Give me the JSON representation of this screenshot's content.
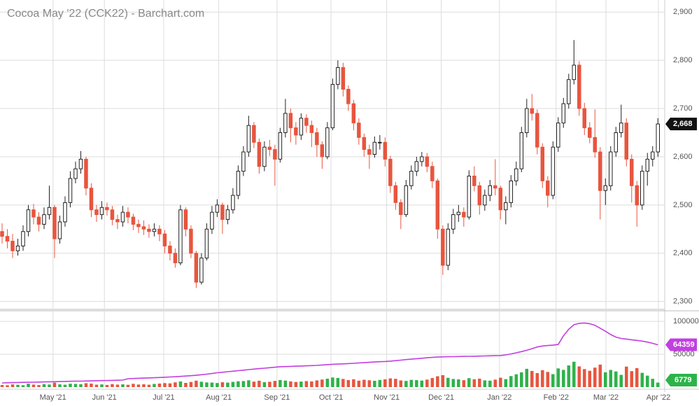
{
  "chart_data": [
    {
      "type": "candlestick",
      "title": "Cocoa May '22 (CCK22) - Barchart.com",
      "open": [
        2445,
        2435,
        2425,
        2405,
        2415,
        2445,
        2490,
        2475,
        2460,
        2480,
        2495,
        2430,
        2465,
        2505,
        2555,
        2575,
        2595,
        2535,
        2490,
        2480,
        2495,
        2490,
        2470,
        2465,
        2485,
        2475,
        2460,
        2455,
        2450,
        2445,
        2450,
        2440,
        2415,
        2400,
        2380,
        2490,
        2450,
        2400,
        2340,
        2390,
        2450,
        2485,
        2500,
        2470,
        2490,
        2520,
        2570,
        2610,
        2665,
        2630,
        2580,
        2620,
        2615,
        2595,
        2650,
        2690,
        2660,
        2645,
        2680,
        2665,
        2650,
        2625,
        2600,
        2660,
        2750,
        2785,
        2740,
        2710,
        2670,
        2640,
        2615,
        2605,
        2630,
        2630,
        2595,
        2540,
        2505,
        2480,
        2540,
        2570,
        2590,
        2600,
        2580,
        2550,
        2450,
        2375,
        2450,
        2480,
        2485,
        2475,
        2560,
        2540,
        2500,
        2520,
        2540,
        2535,
        2490,
        2505,
        2550,
        2575,
        2650,
        2700,
        2690,
        2620,
        2550,
        2520,
        2620,
        2670,
        2710,
        2760,
        2790,
        2700,
        2660,
        2640,
        2610,
        2530,
        2540,
        2610,
        2650,
        2670,
        2595,
        2540,
        2500,
        2570,
        2595,
        2610
      ],
      "high": [
        2462,
        2450,
        2440,
        2430,
        2458,
        2500,
        2502,
        2485,
        2495,
        2540,
        2500,
        2478,
        2518,
        2570,
        2590,
        2612,
        2600,
        2545,
        2500,
        2508,
        2505,
        2498,
        2480,
        2498,
        2495,
        2482,
        2470,
        2468,
        2460,
        2462,
        2458,
        2448,
        2425,
        2410,
        2500,
        2495,
        2458,
        2405,
        2400,
        2462,
        2498,
        2512,
        2505,
        2500,
        2535,
        2582,
        2622,
        2685,
        2672,
        2638,
        2632,
        2635,
        2625,
        2660,
        2720,
        2700,
        2672,
        2690,
        2688,
        2675,
        2660,
        2632,
        2672,
        2762,
        2800,
        2795,
        2748,
        2718,
        2680,
        2648,
        2625,
        2642,
        2645,
        2640,
        2602,
        2548,
        2512,
        2552,
        2582,
        2600,
        2610,
        2608,
        2590,
        2555,
        2458,
        2462,
        2492,
        2500,
        2495,
        2572,
        2580,
        2548,
        2532,
        2552,
        2595,
        2540,
        2518,
        2562,
        2590,
        2662,
        2720,
        2730,
        2698,
        2628,
        2560,
        2632,
        2682,
        2722,
        2772,
        2842,
        2798,
        2712,
        2672,
        2698,
        2620,
        2555,
        2622,
        2662,
        2708,
        2680,
        2605,
        2550,
        2582,
        2608,
        2622,
        2680
      ],
      "low": [
        2420,
        2410,
        2390,
        2395,
        2405,
        2435,
        2460,
        2445,
        2450,
        2470,
        2390,
        2420,
        2455,
        2495,
        2545,
        2565,
        2520,
        2475,
        2465,
        2470,
        2478,
        2458,
        2450,
        2455,
        2462,
        2448,
        2442,
        2438,
        2432,
        2435,
        2425,
        2400,
        2385,
        2370,
        2375,
        2435,
        2390,
        2328,
        2335,
        2385,
        2440,
        2475,
        2440,
        2460,
        2482,
        2512,
        2560,
        2600,
        2618,
        2565,
        2570,
        2602,
        2540,
        2588,
        2640,
        2630,
        2625,
        2635,
        2650,
        2620,
        2600,
        2575,
        2595,
        2655,
        2740,
        2725,
        2695,
        2655,
        2625,
        2600,
        2575,
        2598,
        2615,
        2580,
        2525,
        2490,
        2450,
        2475,
        2532,
        2560,
        2580,
        2568,
        2535,
        2430,
        2355,
        2365,
        2440,
        2465,
        2455,
        2470,
        2528,
        2480,
        2488,
        2508,
        2520,
        2470,
        2460,
        2495,
        2540,
        2568,
        2640,
        2675,
        2605,
        2535,
        2495,
        2512,
        2610,
        2660,
        2700,
        2750,
        2685,
        2645,
        2628,
        2598,
        2470,
        2500,
        2530,
        2600,
        2640,
        2580,
        2505,
        2455,
        2490,
        2540,
        2580,
        2600
      ],
      "close": [
        2435,
        2425,
        2405,
        2415,
        2445,
        2490,
        2475,
        2460,
        2480,
        2495,
        2430,
        2465,
        2505,
        2555,
        2575,
        2595,
        2535,
        2490,
        2480,
        2495,
        2490,
        2470,
        2465,
        2485,
        2475,
        2460,
        2455,
        2450,
        2445,
        2450,
        2440,
        2415,
        2400,
        2380,
        2490,
        2450,
        2400,
        2340,
        2390,
        2450,
        2485,
        2500,
        2470,
        2490,
        2520,
        2570,
        2610,
        2665,
        2630,
        2580,
        2620,
        2615,
        2595,
        2650,
        2690,
        2660,
        2645,
        2680,
        2665,
        2650,
        2625,
        2600,
        2660,
        2750,
        2785,
        2740,
        2710,
        2670,
        2640,
        2615,
        2605,
        2630,
        2630,
        2595,
        2540,
        2505,
        2480,
        2540,
        2570,
        2590,
        2600,
        2580,
        2550,
        2450,
        2375,
        2450,
        2480,
        2485,
        2475,
        2560,
        2540,
        2500,
        2520,
        2540,
        2535,
        2490,
        2505,
        2550,
        2575,
        2650,
        2700,
        2690,
        2620,
        2550,
        2520,
        2620,
        2670,
        2710,
        2760,
        2790,
        2700,
        2660,
        2640,
        2610,
        2530,
        2540,
        2610,
        2650,
        2670,
        2595,
        2540,
        2500,
        2570,
        2595,
        2610,
        2668
      ],
      "last_label": "2,668",
      "up_color": "#ffffff",
      "down_color": "#e8553e",
      "wick_color": "#222222",
      "label_color": "#111111",
      "ylim": [
        2285,
        2925
      ],
      "yticks": [
        {
          "value": 2300,
          "label": "2,300"
        },
        {
          "value": 2400,
          "label": "2,400"
        },
        {
          "value": 2500,
          "label": "2,500"
        },
        {
          "value": 2600,
          "label": "2,600"
        },
        {
          "value": 2700,
          "label": "2,700"
        },
        {
          "value": 2800,
          "label": "2,800"
        },
        {
          "value": 2900,
          "label": "2,900"
        }
      ],
      "xlim": [
        -0.4,
        126.3
      ],
      "xticks": [
        {
          "value": 9.7,
          "label": "May '21"
        },
        {
          "value": 19.5,
          "label": "Jun '21"
        },
        {
          "value": 30.8,
          "label": "Jul '21"
        },
        {
          "value": 41.3,
          "label": "Aug '21"
        },
        {
          "value": 52.4,
          "label": "Sep '21"
        },
        {
          "value": 62.7,
          "label": "Oct '21"
        },
        {
          "value": 73.3,
          "label": "Nov '21"
        },
        {
          "value": 83.7,
          "label": "Dec '21"
        },
        {
          "value": 94.8,
          "label": "Jan '22"
        },
        {
          "value": 105.6,
          "label": "Feb '22"
        },
        {
          "value": 115.1,
          "label": "Mar '22"
        },
        {
          "value": 125.1,
          "label": "Apr '22"
        }
      ],
      "grid": true
    },
    {
      "type": "volume",
      "volume": {
        "up_color": "#2db34a",
        "down_color": "#e8553e",
        "values": [
          3200,
          2800,
          4100,
          3500,
          2900,
          5200,
          3800,
          3100,
          4500,
          3900,
          6800,
          4200,
          3600,
          5100,
          4800,
          4400,
          5900,
          5300,
          3700,
          4100,
          3300,
          4600,
          3800,
          4200,
          3500,
          5000,
          3900,
          4300,
          3600,
          4800,
          5400,
          6100,
          5700,
          7200,
          8600,
          6400,
          7800,
          9800,
          8200,
          7100,
          6900,
          6200,
          7400,
          6800,
          7900,
          8800,
          9200,
          10400,
          8300,
          9700,
          7600,
          8100,
          9400,
          10800,
          9900,
          8700,
          7800,
          8400,
          9100,
          8600,
          10200,
          11500,
          12800,
          14600,
          13900,
          12400,
          10700,
          11900,
          9800,
          11200,
          10400,
          9600,
          10900,
          11800,
          13200,
          12600,
          10100,
          9400,
          11000,
          10600,
          9900,
          11400,
          13800,
          16500,
          18200,
          14100,
          12300,
          11700,
          10500,
          13600,
          11900,
          12800,
          10200,
          9800,
          11400,
          14300,
          12100,
          16800,
          19500,
          22400,
          27800,
          24600,
          21300,
          25800,
          23100,
          19700,
          28400,
          26200,
          32900,
          38600,
          31500,
          27400,
          24800,
          29600,
          34200,
          22500,
          26100,
          23800,
          18600,
          31200,
          24300,
          28900,
          21700,
          17400,
          12600,
          6779
        ]
      },
      "open_interest": {
        "color": "#c23fe0",
        "values": [
          6400,
          6600,
          6800,
          7000,
          7200,
          7300,
          7500,
          7700,
          7900,
          8100,
          8200,
          8400,
          8600,
          8800,
          9000,
          9100,
          9300,
          9500,
          9700,
          9900,
          10000,
          10200,
          10400,
          10600,
          12800,
          13100,
          13400,
          13700,
          14000,
          14300,
          14600,
          15000,
          15400,
          15800,
          16300,
          16800,
          17400,
          18000,
          18800,
          19700,
          20700,
          21800,
          22600,
          23400,
          24200,
          25000,
          25800,
          26600,
          27400,
          28100,
          28800,
          29500,
          30200,
          31000,
          31200,
          31500,
          31800,
          32100,
          32400,
          32700,
          33000,
          33600,
          34200,
          34700,
          35000,
          35300,
          35800,
          36200,
          36700,
          37200,
          37700,
          38200,
          38600,
          39000,
          39500,
          40300,
          41000,
          41800,
          42500,
          43200,
          43900,
          44600,
          45200,
          45700,
          46000,
          46200,
          46300,
          46500,
          46700,
          46800,
          47000,
          47200,
          47400,
          47600,
          47800,
          48000,
          49000,
          50500,
          52200,
          54000,
          56000,
          58500,
          61000,
          62500,
          63200,
          63800,
          64800,
          78000,
          88000,
          95000,
          97000,
          97500,
          96500,
          94000,
          89500,
          85000,
          80000,
          76000,
          74000,
          73000,
          72000,
          71000,
          70000,
          68500,
          66500,
          64359
        ]
      },
      "ylim": [
        0,
        115000
      ],
      "yticks": [
        50000,
        100000
      ],
      "grid": true
    }
  ]
}
